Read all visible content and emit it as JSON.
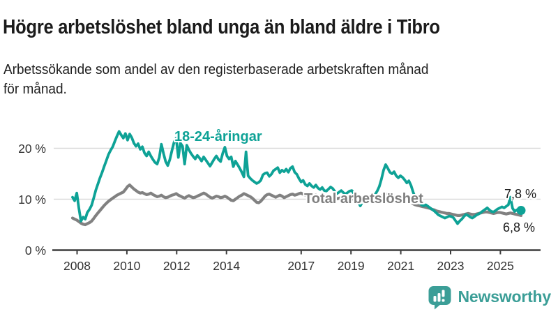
{
  "header": {
    "title": "Högre arbetslöshet bland unga än bland äldre i Tibro",
    "subtitle": "Arbetssökande som andel av den registerbaserade arbetskraften månad\nför månad."
  },
  "colors": {
    "youth": "#0ea296",
    "total": "#818181",
    "grid": "#d9d9d9",
    "axis": "#3d3d3d",
    "tick_text": "#333333",
    "brand": "#3b9e97"
  },
  "chart_data": {
    "type": "line",
    "title": "Högre arbetslöshet bland unga än bland äldre i Tibro",
    "subtitle": "Arbetssökande som andel av den registerbaserade arbetskraften månad för månad.",
    "x_unit": "month",
    "x_start": "2008-01",
    "x_end": "2025-09",
    "ylim": [
      0,
      25
    ],
    "grid": "horizontal",
    "legend_position": "inline-labels",
    "y_ticks": [
      {
        "value": 0,
        "label": "0 %"
      },
      {
        "value": 10,
        "label": "10 %"
      },
      {
        "value": 20,
        "label": "20 %"
      }
    ],
    "x_ticks": [
      {
        "year": 2008,
        "label": "2008"
      },
      {
        "year": 2010,
        "label": "2010"
      },
      {
        "year": 2012,
        "label": "2012"
      },
      {
        "year": 2014,
        "label": "2014"
      },
      {
        "year": 2017,
        "label": "2017"
      },
      {
        "year": 2019,
        "label": "2019"
      },
      {
        "year": 2021,
        "label": "2021"
      },
      {
        "year": 2023,
        "label": "2023"
      },
      {
        "year": 2025,
        "label": "2025"
      }
    ],
    "series": [
      {
        "name": "18-24-åringar",
        "color": "#0ea296",
        "end_label": "7,8 %",
        "end_value": 7.8,
        "values": [
          10.4,
          9.7,
          11.2,
          8.2,
          5.7,
          6.5,
          6.1,
          7.4,
          8.0,
          8.8,
          10.2,
          11.8,
          13.0,
          14.2,
          15.3,
          16.5,
          17.6,
          18.8,
          19.6,
          20.3,
          21.4,
          22.4,
          23.3,
          22.6,
          22.0,
          22.9,
          21.6,
          22.8,
          22.1,
          21.0,
          20.4,
          20.9,
          19.8,
          20.3,
          19.1,
          18.5,
          19.3,
          18.5,
          17.8,
          17.2,
          16.9,
          18.2,
          20.8,
          19.0,
          17.4,
          16.6,
          17.8,
          19.6,
          21.2,
          22.0,
          18.2,
          21.0,
          20.4,
          16.9,
          20.6,
          19.7,
          19.0,
          18.4,
          17.9,
          18.6,
          18.1,
          17.5,
          18.3,
          17.7,
          17.1,
          16.5,
          17.2,
          17.9,
          18.5,
          17.8,
          17.4,
          19.0,
          20.2,
          18.5,
          17.9,
          18.3,
          16.4,
          17.5,
          16.8,
          16.1,
          15.3,
          14.4,
          19.3,
          14.6,
          14.1,
          13.7,
          13.4,
          13.1,
          13.3,
          13.7,
          14.8,
          15.1,
          15.2,
          14.5,
          14.9,
          15.6,
          15.9,
          16.2,
          15.2,
          15.7,
          15.4,
          15.9,
          15.3,
          16.1,
          16.4,
          15.3,
          14.9,
          14.1,
          13.4,
          13.7,
          12.9,
          12.6,
          13.1,
          12.6,
          12.3,
          12.8,
          12.2,
          11.9,
          12.3,
          11.7,
          11.6,
          12.0,
          12.4,
          12.1,
          11.5,
          11.1,
          11.4,
          11.7,
          11.3,
          11.0,
          11.3,
          11.6,
          11.7,
          11.1,
          10.3,
          9.5,
          8.7,
          9.4,
          10.2,
          9.8,
          9.6,
          9.9,
          10.3,
          10.9,
          11.6,
          12.5,
          13.9,
          15.7,
          16.8,
          16.1,
          15.3,
          15.0,
          15.4,
          14.6,
          14.2,
          14.6,
          14.3,
          13.8,
          13.2,
          13.6,
          12.7,
          11.4,
          10.3,
          9.7,
          9.3,
          8.9,
          8.7,
          8.9,
          8.6,
          8.3,
          8.0,
          7.7,
          7.3,
          6.9,
          6.7,
          6.5,
          6.3,
          6.5,
          6.7,
          6.6,
          6.4,
          5.8,
          5.2,
          5.7,
          6.1,
          6.6,
          7.0,
          6.8,
          6.5,
          6.3,
          6.6,
          6.9,
          7.1,
          7.4,
          7.7,
          8.0,
          8.3,
          7.9,
          7.6,
          7.5,
          7.8,
          8.1,
          8.3,
          8.5,
          8.3,
          8.6,
          8.9,
          10.4,
          8.2,
          7.6,
          7.9,
          8.1,
          7.8
        ]
      },
      {
        "name": "Total arbetslöshet",
        "color": "#818181",
        "end_label": "6,8 %",
        "end_value": 6.8,
        "values": [
          6.3,
          6.1,
          5.9,
          5.6,
          5.3,
          5.1,
          5.0,
          5.2,
          5.4,
          5.7,
          6.2,
          6.8,
          7.3,
          7.8,
          8.3,
          8.8,
          9.2,
          9.6,
          9.9,
          10.2,
          10.5,
          10.8,
          11.0,
          11.2,
          11.4,
          11.9,
          12.5,
          12.8,
          12.4,
          12.0,
          11.7,
          11.4,
          11.2,
          11.3,
          11.1,
          10.9,
          11.0,
          11.2,
          10.9,
          10.7,
          10.5,
          10.6,
          10.8,
          10.5,
          10.3,
          10.4,
          10.6,
          10.8,
          10.9,
          11.1,
          10.8,
          10.6,
          10.4,
          10.2,
          10.5,
          10.7,
          10.5,
          10.3,
          10.4,
          10.6,
          10.8,
          11.0,
          11.2,
          11.0,
          10.7,
          10.4,
          10.2,
          10.4,
          10.6,
          10.5,
          10.3,
          10.4,
          10.6,
          10.4,
          10.1,
          9.8,
          9.7,
          10.0,
          10.3,
          10.6,
          10.8,
          11.1,
          10.9,
          10.7,
          10.5,
          10.2,
          9.8,
          9.4,
          9.3,
          9.6,
          10.1,
          10.6,
          10.9,
          11.0,
          10.8,
          10.6,
          10.4,
          10.6,
          10.8,
          10.6,
          10.3,
          10.5,
          10.7,
          10.9,
          11.0,
          10.8,
          10.9,
          11.1,
          11.2,
          11.0,
          10.8,
          10.9,
          10.7,
          10.5,
          10.6,
          10.8,
          10.6,
          10.4,
          10.5,
          10.7,
          10.6,
          10.5,
          10.4,
          10.3,
          10.2,
          10.1,
          10.2,
          10.3,
          10.2,
          10.1,
          10.0,
          10.0,
          10.1,
          10.0,
          9.9,
          9.8,
          9.7,
          9.8,
          9.9,
          9.8,
          9.7,
          9.8,
          9.9,
          10.0,
          10.2,
          10.4,
          10.7,
          10.9,
          11.0,
          10.9,
          10.8,
          10.7,
          10.6,
          10.5,
          10.4,
          10.3,
          10.1,
          9.9,
          9.7,
          9.5,
          9.3,
          9.1,
          8.9,
          8.8,
          8.7,
          8.6,
          8.5,
          8.4,
          8.3,
          8.2,
          8.0,
          7.9,
          7.7,
          7.6,
          7.5,
          7.4,
          7.3,
          7.2,
          7.2,
          7.1,
          7.0,
          6.9,
          6.8,
          6.8,
          6.9,
          7.0,
          7.1,
          7.2,
          7.1,
          7.0,
          7.0,
          7.1,
          7.2,
          7.3,
          7.4,
          7.5,
          7.5,
          7.4,
          7.3,
          7.2,
          7.3,
          7.4,
          7.4,
          7.3,
          7.2,
          7.1,
          7.2,
          7.3,
          7.2,
          7.1,
          7.0,
          6.9,
          6.8
        ]
      }
    ]
  },
  "footer": {
    "brand": "Newsworthy"
  }
}
